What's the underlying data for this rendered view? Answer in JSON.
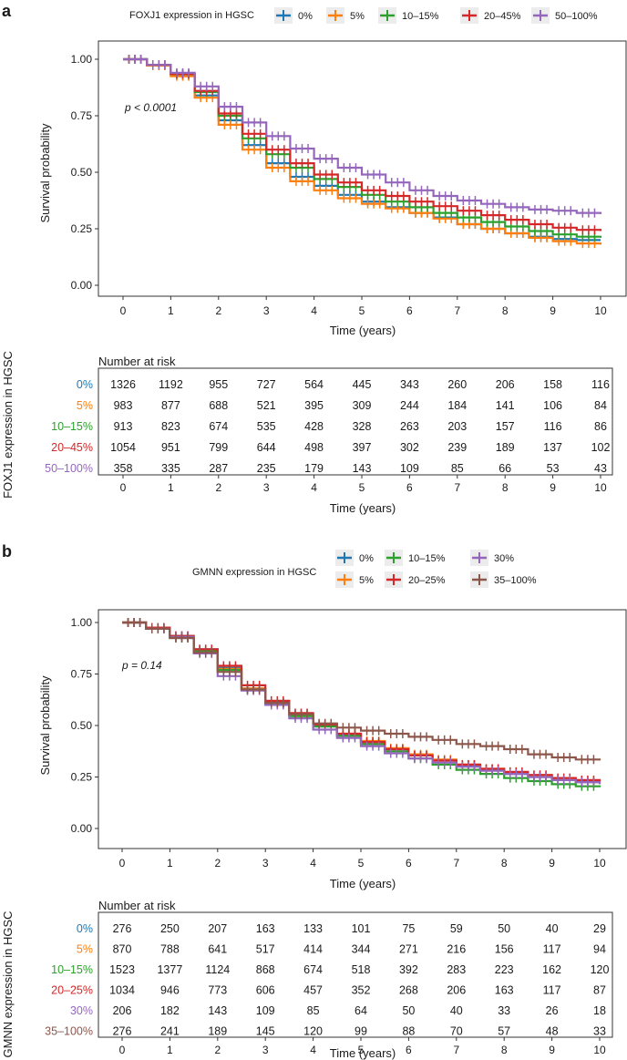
{
  "chart_data": [
    {
      "panel_label": "a",
      "type": "line",
      "title": "",
      "legend_title": "FOXJ1 expression in HGSC",
      "xlabel": "Time (years)",
      "ylabel": "Survival probability",
      "xlim": [
        0,
        10
      ],
      "ylim": [
        0,
        1
      ],
      "xticks": [
        "0",
        "1",
        "2",
        "3",
        "4",
        "5",
        "6",
        "7",
        "8",
        "9",
        "10"
      ],
      "yticks": [
        "0.00",
        "0.25",
        "0.50",
        "0.75",
        "1.00"
      ],
      "pvalue": "p < 0.0001",
      "risk_title": "Number at risk",
      "risk_ylabel": "FOXJ1 expression in HGSC",
      "risk_xlabel": "Time (years)",
      "series": [
        {
          "name": "0%",
          "color": "#1f77b4",
          "x": [
            0,
            0.5,
            1,
            1.5,
            2,
            2.5,
            3,
            3.5,
            4,
            4.5,
            5,
            5.5,
            6,
            6.5,
            7,
            7.5,
            8,
            8.5,
            9,
            9.5,
            10
          ],
          "y": [
            1.0,
            0.975,
            0.93,
            0.84,
            0.73,
            0.62,
            0.54,
            0.48,
            0.44,
            0.4,
            0.37,
            0.345,
            0.32,
            0.3,
            0.27,
            0.25,
            0.23,
            0.215,
            0.205,
            0.2,
            0.2
          ],
          "risk": [
            "1326",
            "1192",
            "955",
            "727",
            "564",
            "445",
            "343",
            "260",
            "206",
            "158",
            "116"
          ]
        },
        {
          "name": "5%",
          "color": "#ff7f0e",
          "x": [
            0,
            0.5,
            1,
            1.5,
            2,
            2.5,
            3,
            3.5,
            4,
            4.5,
            5,
            5.5,
            6,
            6.5,
            7,
            7.5,
            8,
            8.5,
            9,
            9.5,
            10
          ],
          "y": [
            1.0,
            0.972,
            0.925,
            0.83,
            0.71,
            0.6,
            0.52,
            0.46,
            0.42,
            0.385,
            0.36,
            0.34,
            0.32,
            0.295,
            0.27,
            0.25,
            0.23,
            0.21,
            0.195,
            0.185,
            0.18
          ],
          "risk": [
            "983",
            "877",
            "688",
            "521",
            "395",
            "309",
            "244",
            "184",
            "141",
            "106",
            "84"
          ]
        },
        {
          "name": "10–15%",
          "color": "#2ca02c",
          "x": [
            0,
            0.5,
            1,
            1.5,
            2,
            2.5,
            3,
            3.5,
            4,
            4.5,
            5,
            5.5,
            6,
            6.5,
            7,
            7.5,
            8,
            8.5,
            9,
            9.5,
            10
          ],
          "y": [
            1.0,
            0.975,
            0.935,
            0.855,
            0.75,
            0.65,
            0.58,
            0.52,
            0.47,
            0.435,
            0.4,
            0.37,
            0.345,
            0.32,
            0.3,
            0.28,
            0.26,
            0.24,
            0.225,
            0.215,
            0.21
          ],
          "risk": [
            "913",
            "823",
            "674",
            "535",
            "428",
            "328",
            "263",
            "203",
            "157",
            "116",
            "86"
          ]
        },
        {
          "name": "20–45%",
          "color": "#d62728",
          "x": [
            0,
            0.5,
            1,
            1.5,
            2,
            2.5,
            3,
            3.5,
            4,
            4.5,
            5,
            5.5,
            6,
            6.5,
            7,
            7.5,
            8,
            8.5,
            9,
            9.5,
            10
          ],
          "y": [
            1.0,
            0.975,
            0.935,
            0.86,
            0.76,
            0.67,
            0.6,
            0.54,
            0.49,
            0.455,
            0.42,
            0.395,
            0.37,
            0.35,
            0.33,
            0.31,
            0.29,
            0.27,
            0.255,
            0.245,
            0.24
          ],
          "risk": [
            "1054",
            "951",
            "799",
            "644",
            "498",
            "397",
            "302",
            "239",
            "189",
            "137",
            "102"
          ]
        },
        {
          "name": "50–100%",
          "color": "#9467bd",
          "x": [
            0,
            0.5,
            1,
            1.5,
            2,
            2.5,
            3,
            3.5,
            4,
            4.5,
            5,
            5.5,
            6,
            6.5,
            7,
            7.5,
            8,
            8.5,
            9,
            9.5,
            10
          ],
          "y": [
            1.0,
            0.975,
            0.94,
            0.88,
            0.79,
            0.72,
            0.66,
            0.605,
            0.56,
            0.52,
            0.49,
            0.455,
            0.42,
            0.395,
            0.375,
            0.36,
            0.345,
            0.335,
            0.33,
            0.32,
            0.315
          ],
          "risk": [
            "358",
            "335",
            "287",
            "235",
            "179",
            "143",
            "109",
            "85",
            "66",
            "53",
            "43"
          ]
        }
      ]
    },
    {
      "panel_label": "b",
      "type": "line",
      "title": "",
      "legend_title": "GMNN expression in HGSC",
      "xlabel": "Time (years)",
      "ylabel": "Survival probability",
      "xlim": [
        0,
        10
      ],
      "ylim": [
        0,
        1
      ],
      "xticks": [
        "0",
        "1",
        "2",
        "3",
        "4",
        "5",
        "6",
        "7",
        "8",
        "9",
        "10"
      ],
      "yticks": [
        "0.00",
        "0.25",
        "0.50",
        "0.75",
        "1.00"
      ],
      "pvalue": "p = 0.14",
      "risk_title": "Number at risk",
      "risk_ylabel": "GMNN expression in HGSC",
      "risk_xlabel": "Time (years)",
      "series": [
        {
          "name": "0%",
          "color": "#1f77b4",
          "x": [
            0,
            0.5,
            1,
            1.5,
            2,
            2.5,
            3,
            3.5,
            4,
            4.5,
            5,
            5.5,
            6,
            6.5,
            7,
            7.5,
            8,
            8.5,
            9,
            9.5,
            10
          ],
          "y": [
            1.0,
            0.975,
            0.935,
            0.87,
            0.78,
            0.68,
            0.61,
            0.55,
            0.5,
            0.455,
            0.42,
            0.385,
            0.355,
            0.33,
            0.305,
            0.285,
            0.265,
            0.25,
            0.235,
            0.225,
            0.22
          ],
          "risk": [
            "276",
            "250",
            "207",
            "163",
            "133",
            "101",
            "75",
            "59",
            "50",
            "40",
            "29"
          ]
        },
        {
          "name": "5%",
          "color": "#ff7f0e",
          "x": [
            0,
            0.5,
            1,
            1.5,
            2,
            2.5,
            3,
            3.5,
            4,
            4.5,
            5,
            5.5,
            6,
            6.5,
            7,
            7.5,
            8,
            8.5,
            9,
            9.5,
            10
          ],
          "y": [
            1.0,
            0.97,
            0.93,
            0.865,
            0.775,
            0.68,
            0.61,
            0.55,
            0.5,
            0.46,
            0.425,
            0.39,
            0.36,
            0.335,
            0.31,
            0.29,
            0.27,
            0.255,
            0.24,
            0.23,
            0.225
          ],
          "risk": [
            "870",
            "788",
            "641",
            "517",
            "414",
            "344",
            "271",
            "216",
            "156",
            "117",
            "94"
          ]
        },
        {
          "name": "10–15%",
          "color": "#2ca02c",
          "x": [
            0,
            0.5,
            1,
            1.5,
            2,
            2.5,
            3,
            3.5,
            4,
            4.5,
            5,
            5.5,
            6,
            6.5,
            7,
            7.5,
            8,
            8.5,
            9,
            9.5,
            10
          ],
          "y": [
            1.0,
            0.97,
            0.925,
            0.86,
            0.77,
            0.675,
            0.605,
            0.545,
            0.495,
            0.45,
            0.41,
            0.375,
            0.34,
            0.31,
            0.285,
            0.265,
            0.245,
            0.23,
            0.215,
            0.205,
            0.2
          ],
          "risk": [
            "1523",
            "1377",
            "1124",
            "868",
            "674",
            "518",
            "392",
            "283",
            "223",
            "162",
            "120"
          ]
        },
        {
          "name": "20–25%",
          "color": "#d62728",
          "x": [
            0,
            0.5,
            1,
            1.5,
            2,
            2.5,
            3,
            3.5,
            4,
            4.5,
            5,
            5.5,
            6,
            6.5,
            7,
            7.5,
            8,
            8.5,
            9,
            9.5,
            10
          ],
          "y": [
            1.0,
            0.975,
            0.935,
            0.87,
            0.79,
            0.695,
            0.62,
            0.56,
            0.505,
            0.46,
            0.42,
            0.385,
            0.355,
            0.33,
            0.31,
            0.29,
            0.275,
            0.26,
            0.245,
            0.235,
            0.23
          ],
          "risk": [
            "1034",
            "946",
            "773",
            "606",
            "457",
            "352",
            "268",
            "206",
            "163",
            "117",
            "87"
          ]
        },
        {
          "name": "30%",
          "color": "#9467bd",
          "x": [
            0,
            0.5,
            1,
            1.5,
            2,
            2.5,
            3,
            3.5,
            4,
            4.5,
            5,
            5.5,
            6,
            6.5,
            7,
            7.5,
            8,
            8.5,
            9,
            9.5,
            10
          ],
          "y": [
            1.0,
            0.97,
            0.93,
            0.85,
            0.74,
            0.67,
            0.6,
            0.535,
            0.48,
            0.44,
            0.4,
            0.365,
            0.34,
            0.32,
            0.3,
            0.28,
            0.265,
            0.25,
            0.235,
            0.225,
            0.215
          ],
          "risk": [
            "206",
            "182",
            "143",
            "109",
            "85",
            "64",
            "50",
            "40",
            "33",
            "26",
            "18"
          ]
        },
        {
          "name": "35–100%",
          "color": "#8c564b",
          "x": [
            0,
            0.5,
            1,
            1.5,
            2,
            2.5,
            3,
            3.5,
            4,
            4.5,
            5,
            5.5,
            6,
            6.5,
            7,
            7.5,
            8,
            8.5,
            9,
            9.5,
            10
          ],
          "y": [
            1.0,
            0.97,
            0.925,
            0.855,
            0.76,
            0.675,
            0.61,
            0.555,
            0.51,
            0.49,
            0.475,
            0.46,
            0.445,
            0.43,
            0.41,
            0.4,
            0.385,
            0.36,
            0.345,
            0.335,
            0.33
          ],
          "risk": [
            "276",
            "241",
            "189",
            "145",
            "120",
            "99",
            "88",
            "70",
            "57",
            "48",
            "33"
          ]
        }
      ]
    }
  ]
}
